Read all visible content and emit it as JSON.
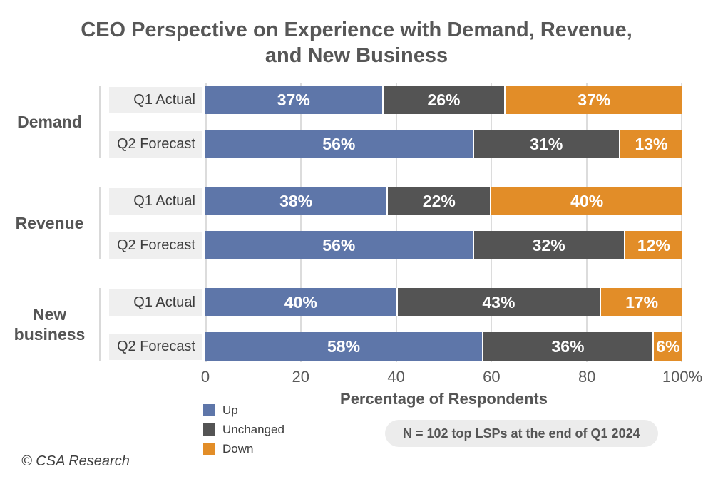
{
  "title": {
    "line1": "CEO Perspective on Experience with Demand, Revenue,",
    "line2": "and New Business"
  },
  "chart_data": {
    "type": "bar",
    "orientation": "horizontal",
    "stacked": true,
    "unit": "%",
    "xlabel": "Percentage of Respondents",
    "x_ticks": [
      "0",
      "20",
      "40",
      "60",
      "80",
      "100%"
    ],
    "xlim": [
      0,
      100
    ],
    "grid": true,
    "series": [
      "Up",
      "Unchanged",
      "Down"
    ],
    "series_colors": [
      "#5e76a9",
      "#545454",
      "#e28d28"
    ],
    "groups": [
      {
        "label": "Demand",
        "rows": [
          {
            "label": "Q1 Actual",
            "values": [
              37,
              26,
              37
            ]
          },
          {
            "label": "Q2 Forecast",
            "values": [
              56,
              31,
              13
            ]
          }
        ]
      },
      {
        "label": "Revenue",
        "rows": [
          {
            "label": "Q1 Actual",
            "values": [
              38,
              22,
              40
            ]
          },
          {
            "label": "Q2 Forecast",
            "values": [
              56,
              32,
              12
            ]
          }
        ]
      },
      {
        "label": "New business",
        "rows": [
          {
            "label": "Q1 Actual",
            "values": [
              40,
              43,
              17
            ]
          },
          {
            "label": "Q2 Forecast",
            "values": [
              58,
              36,
              6
            ]
          }
        ]
      }
    ],
    "legend": {
      "position": "bottom-left",
      "items": [
        {
          "label": "Up",
          "color": "#5e76a9"
        },
        {
          "label": "Unchanged",
          "color": "#545454"
        },
        {
          "label": "Down",
          "color": "#e28d28"
        }
      ]
    }
  },
  "note": "N = 102 top LSPs at the end of Q1 2024",
  "footer": "© CSA Research"
}
